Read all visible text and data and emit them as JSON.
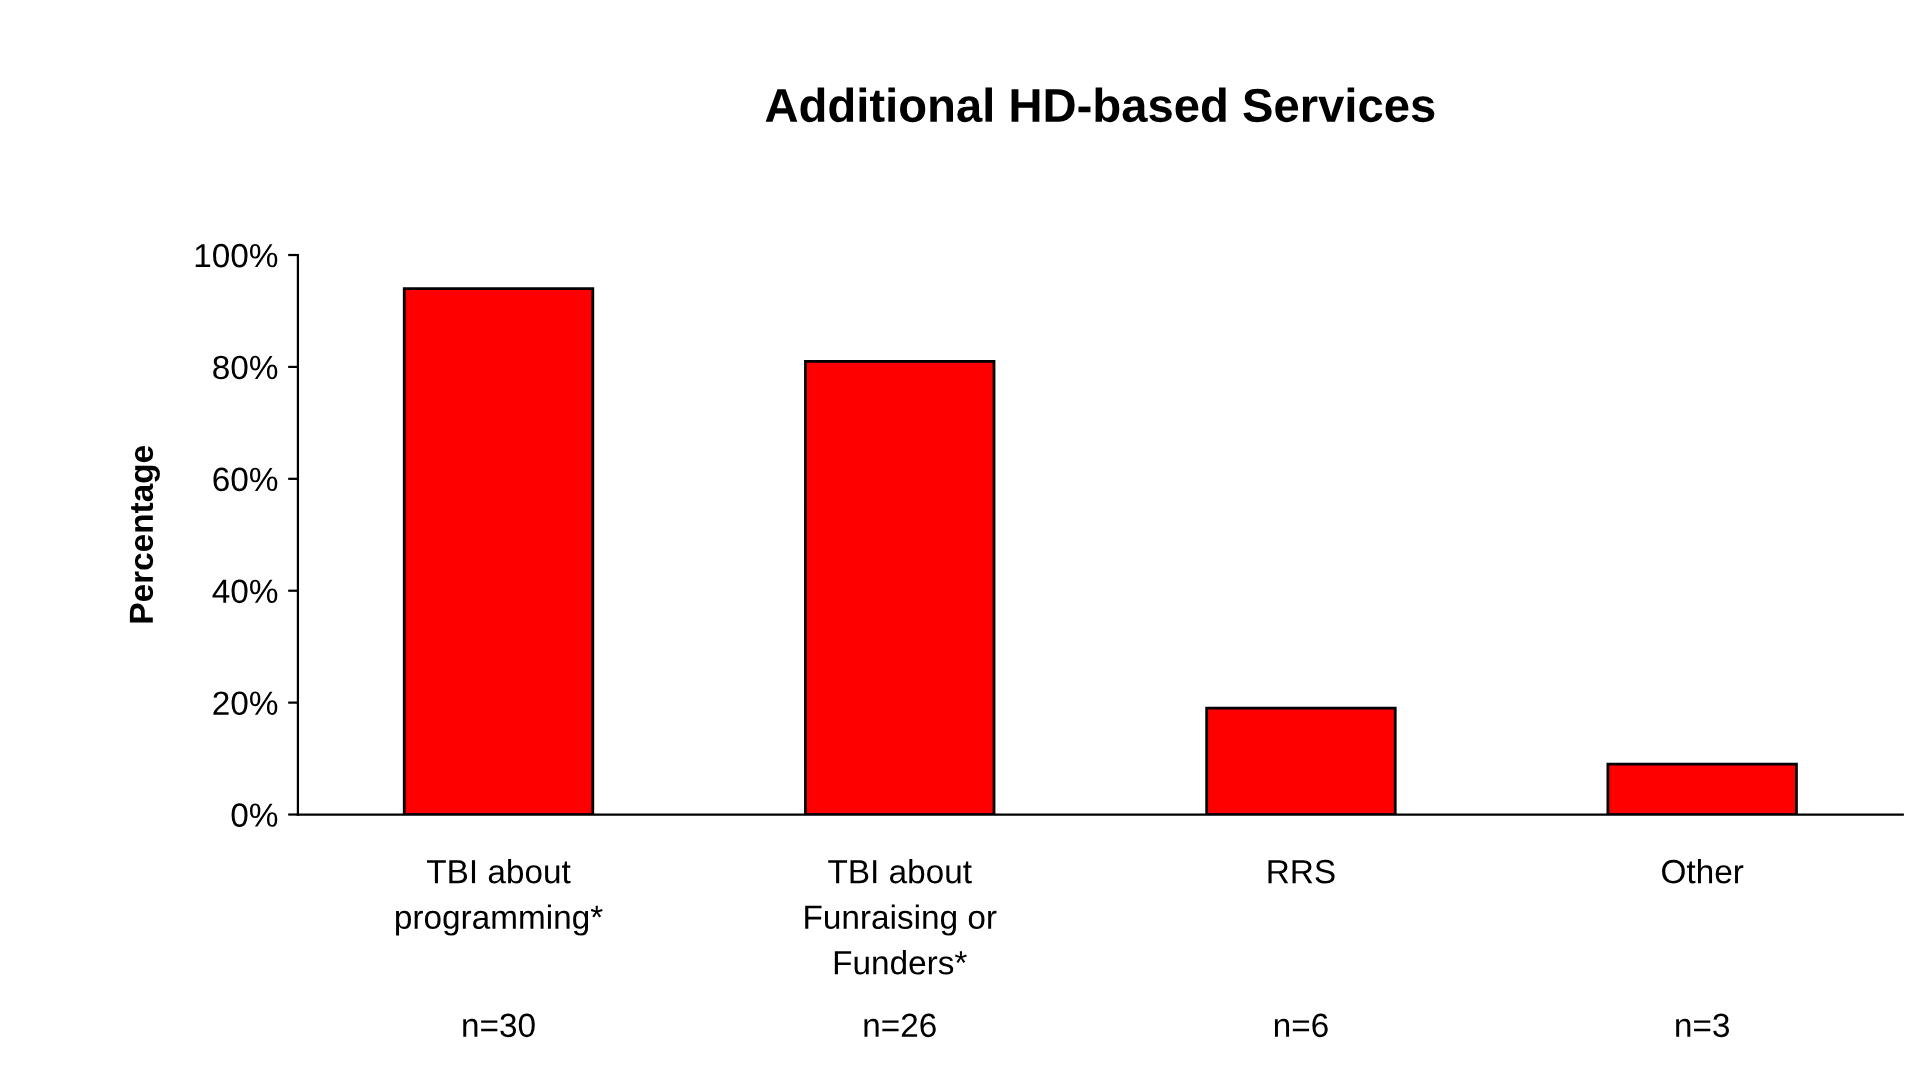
{
  "chart_data": {
    "type": "bar",
    "title": "Additional HD-based Services",
    "ylabel": "Percentage",
    "categories": [
      "TBI about\nprogramming*",
      "TBI about\nFunraising or\nFunders*",
      "RRS",
      "Other"
    ],
    "values": [
      94,
      81,
      19,
      9
    ],
    "color": "#ff0000",
    "ylim": [
      0,
      100
    ],
    "yticks": [
      {
        "value": 0,
        "label": "0%"
      },
      {
        "value": 20,
        "label": "20%"
      },
      {
        "value": 40,
        "label": "40%"
      },
      {
        "value": 60,
        "label": "60%"
      },
      {
        "value": 80,
        "label": "80%"
      },
      {
        "value": 100,
        "label": "100%"
      }
    ],
    "annotations": [
      "n=30",
      "n=26",
      "n=6",
      "n=3"
    ],
    "grid": false,
    "legend": false
  }
}
